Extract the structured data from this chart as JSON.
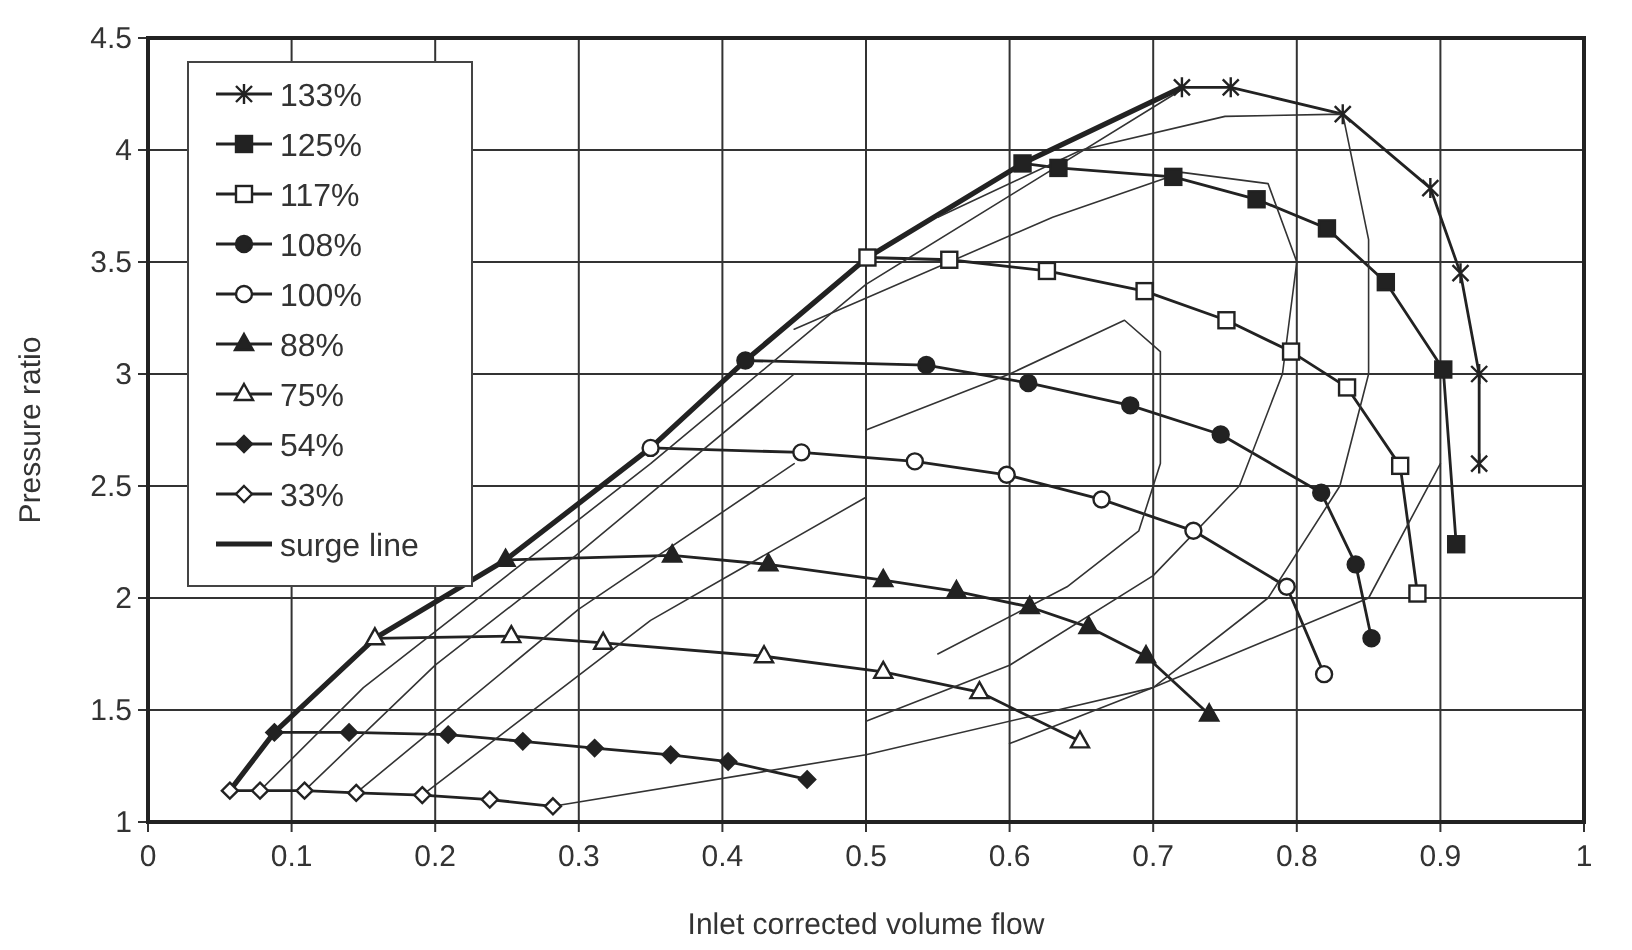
{
  "chart_data": {
    "type": "line",
    "xlabel": "Inlet corrected volume flow",
    "ylabel": "Pressure ratio",
    "xlim": [
      0,
      1
    ],
    "ylim": [
      1,
      4.5
    ],
    "xticks": [
      0,
      0.1,
      0.2,
      0.3,
      0.4,
      0.5,
      0.6,
      0.7,
      0.8,
      0.9,
      1
    ],
    "yticks": [
      1,
      1.5,
      2,
      2.5,
      3,
      3.5,
      4,
      4.5
    ],
    "grid": true,
    "legend": "top left",
    "series": [
      {
        "name": "133%",
        "color": "#222222",
        "marker": "cross",
        "x": [
          0.72,
          0.754,
          0.832,
          0.893,
          0.914,
          0.927,
          0.927
        ],
        "values": [
          4.28,
          4.28,
          4.16,
          3.83,
          3.45,
          3.0,
          2.6
        ]
      },
      {
        "name": "125%",
        "color": "#222222",
        "marker": "square",
        "x": [
          0.609,
          0.634,
          0.714,
          0.772,
          0.821,
          0.862,
          0.902,
          0.911
        ],
        "values": [
          3.94,
          3.92,
          3.88,
          3.78,
          3.65,
          3.41,
          3.02,
          2.24
        ]
      },
      {
        "name": "117%",
        "color": "#222222",
        "marker": "square",
        "x": [
          0.501,
          0.558,
          0.626,
          0.694,
          0.751,
          0.796,
          0.835,
          0.872,
          0.884
        ],
        "values": [
          3.52,
          3.51,
          3.46,
          3.37,
          3.24,
          3.1,
          2.94,
          2.59,
          2.02
        ]
      },
      {
        "name": "108%",
        "color": "#222222",
        "marker": "circle",
        "x": [
          0.416,
          0.542,
          0.613,
          0.684,
          0.747,
          0.817,
          0.841,
          0.852
        ],
        "values": [
          3.06,
          3.04,
          2.96,
          2.86,
          2.73,
          2.47,
          2.15,
          1.82
        ]
      },
      {
        "name": "100%",
        "color": "#222222",
        "marker": "circle",
        "x": [
          0.35,
          0.455,
          0.534,
          0.598,
          0.664,
          0.728,
          0.793,
          0.819
        ],
        "values": [
          2.67,
          2.65,
          2.61,
          2.55,
          2.44,
          2.3,
          2.05,
          1.66
        ]
      },
      {
        "name": "88%",
        "color": "#222222",
        "marker": "triangle",
        "x": [
          0.249,
          0.365,
          0.432,
          0.512,
          0.563,
          0.614,
          0.655,
          0.695,
          0.739
        ],
        "values": [
          2.17,
          2.19,
          2.15,
          2.08,
          2.03,
          1.96,
          1.87,
          1.74,
          1.48
        ]
      },
      {
        "name": "75%",
        "color": "#222222",
        "marker": "triangle",
        "x": [
          0.158,
          0.253,
          0.317,
          0.429,
          0.512,
          0.579,
          0.649
        ],
        "values": [
          1.82,
          1.83,
          1.8,
          1.74,
          1.67,
          1.58,
          1.36
        ]
      },
      {
        "name": "54%",
        "color": "#222222",
        "marker": "diamond",
        "x": [
          0.088,
          0.14,
          0.209,
          0.261,
          0.311,
          0.364,
          0.404,
          0.459
        ],
        "values": [
          1.4,
          1.4,
          1.39,
          1.36,
          1.33,
          1.3,
          1.27,
          1.19
        ]
      },
      {
        "name": "33%",
        "color": "#222222",
        "marker": "diamond",
        "x": [
          0.057,
          0.078,
          0.109,
          0.145,
          0.191,
          0.238,
          0.282
        ],
        "values": [
          1.14,
          1.14,
          1.14,
          1.13,
          1.12,
          1.1,
          1.07
        ]
      },
      {
        "name": "surge line",
        "color": "#222222",
        "marker": "none",
        "x": [
          0.057,
          0.088,
          0.158,
          0.249,
          0.35,
          0.416,
          0.501,
          0.609,
          0.72
        ],
        "values": [
          1.14,
          1.4,
          1.82,
          2.17,
          2.67,
          3.06,
          3.52,
          3.94,
          4.28
        ]
      },
      {
        "color": "#333333",
        "marker": "none",
        "x": [
          0.5,
          0.6,
          0.68,
          0.705,
          0.705,
          0.69,
          0.64,
          0.55
        ],
        "values": [
          2.75,
          3.0,
          3.24,
          3.1,
          2.6,
          2.3,
          2.05,
          1.75
        ]
      },
      {
        "color": "#333333",
        "marker": "none",
        "x": [
          0.45,
          0.63,
          0.72,
          0.78,
          0.8,
          0.79,
          0.76,
          0.7,
          0.6,
          0.5
        ],
        "values": [
          3.2,
          3.7,
          3.9,
          3.85,
          3.5,
          3.0,
          2.5,
          2.1,
          1.7,
          1.45
        ]
      },
      {
        "color": "#333333",
        "marker": "none",
        "x": [
          0.55,
          0.65,
          0.75,
          0.832,
          0.85,
          0.85,
          0.83,
          0.78,
          0.7,
          0.6
        ],
        "values": [
          3.7,
          4.0,
          4.15,
          4.16,
          3.6,
          3.0,
          2.5,
          2.0,
          1.6,
          1.35
        ]
      },
      {
        "color": "#333333",
        "marker": "none",
        "x": [
          0.078,
          0.15,
          0.25,
          0.35,
          0.5,
          0.72
        ],
        "values": [
          1.14,
          1.6,
          2.1,
          2.6,
          3.4,
          4.27
        ]
      },
      {
        "color": "#333333",
        "marker": "none",
        "x": [
          0.109,
          0.2,
          0.3,
          0.45
        ],
        "values": [
          1.14,
          1.7,
          2.2,
          3.0
        ]
      },
      {
        "color": "#333333",
        "marker": "none",
        "x": [
          0.145,
          0.3,
          0.45
        ],
        "values": [
          1.13,
          1.95,
          2.6
        ]
      },
      {
        "color": "#333333",
        "marker": "none",
        "x": [
          0.191,
          0.35,
          0.5
        ],
        "values": [
          1.12,
          1.9,
          2.45
        ]
      },
      {
        "color": "#333333",
        "marker": "none",
        "x": [
          0.282,
          0.5,
          0.7,
          0.85,
          0.9
        ],
        "values": [
          1.07,
          1.3,
          1.6,
          2.0,
          2.6
        ]
      }
    ]
  }
}
